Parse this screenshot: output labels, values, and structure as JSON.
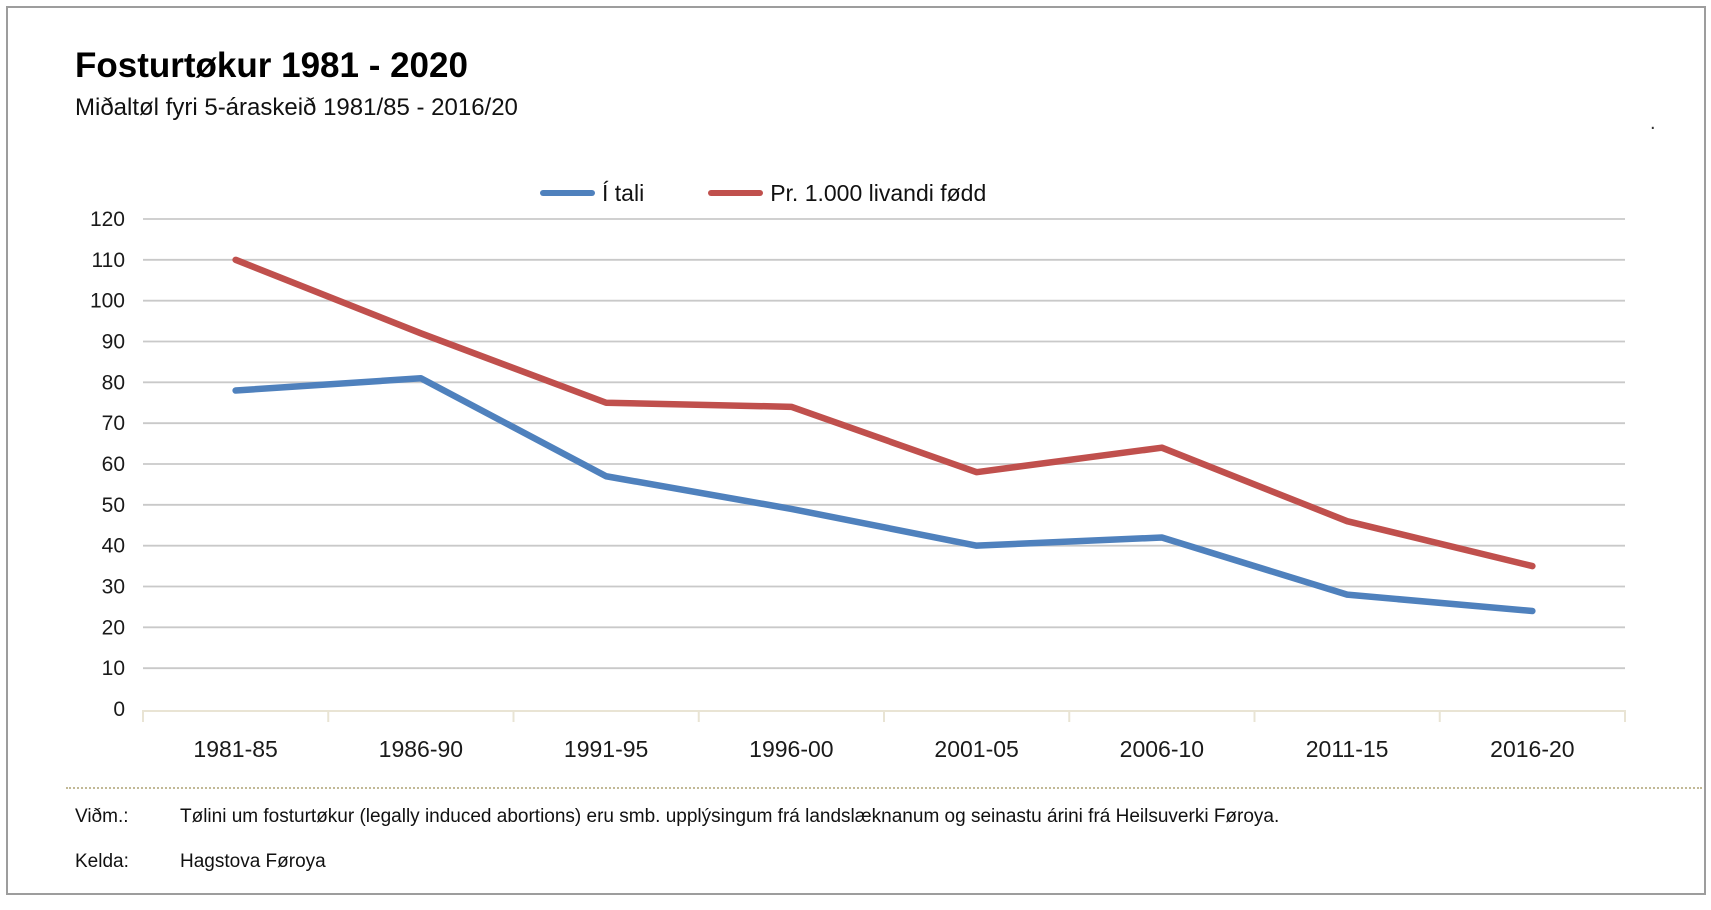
{
  "header": {
    "title": "Fosturtøkur 1981 - 2020",
    "subtitle": "Miðaltøl fyri 5-áraskeið 1981/85 - 2016/20"
  },
  "chart_data": {
    "type": "line",
    "categories": [
      "1981-85",
      "1986-90",
      "1991-95",
      "1996-00",
      "2001-05",
      "2006-10",
      "2011-15",
      "2016-20"
    ],
    "series": [
      {
        "name": "Í tali",
        "color": "#4F81BD",
        "values": [
          78,
          81,
          57,
          49,
          40,
          42,
          28,
          24
        ]
      },
      {
        "name": "Pr. 1.000 livandi fødd",
        "color": "#C0504D",
        "values": [
          110,
          92,
          75,
          74,
          58,
          64,
          46,
          35
        ]
      }
    ],
    "title": "Fosturtøkur 1981 - 2020",
    "xlabel": "",
    "ylabel": "",
    "ylim": [
      0,
      120
    ],
    "ytick_step": 10,
    "grid": true,
    "legend_position": "top-center"
  },
  "footnotes": [
    {
      "label": "Viðm.:",
      "text": "Tølini um fosturtøkur (legally induced abortions) eru smb. upplýsingum frá landslæknanum og seinastu árini frá Heilsuverki Føroya."
    },
    {
      "label": "Kelda:",
      "text": "Hagstova Føroya"
    }
  ],
  "stray_mark": ".",
  "colors": {
    "gridline": "#c9c9c9",
    "axis_beige": "#e9e4d4",
    "dotted_separator": "#c2b996",
    "frame_border": "#9d9d9d",
    "text": "#1a1a1a"
  }
}
